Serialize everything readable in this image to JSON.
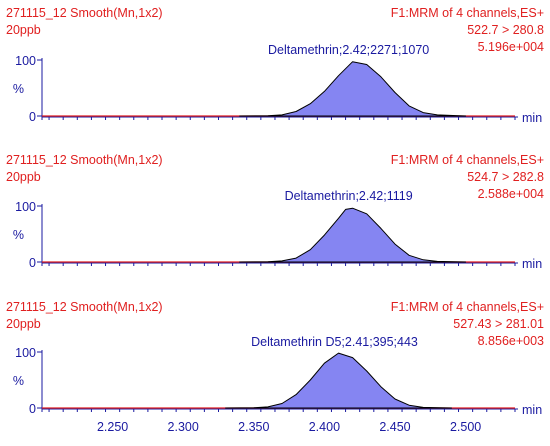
{
  "chart_data": [
    {
      "type": "area",
      "header_left": [
        "271115_12 Smooth(Mn,1x2)",
        "20ppb"
      ],
      "header_right": [
        "F1:MRM of 4 channels,ES+",
        "522.7 > 280.8",
        "5.196e+004"
      ],
      "peak_label": "Deltamethrin;2.42;2271;1070",
      "y_unit": "%",
      "x_unit": "min",
      "yticks": [
        "0",
        "100"
      ],
      "ylim": [
        0,
        100
      ],
      "xlim": [
        2.2,
        2.535
      ],
      "x": [
        2.34,
        2.36,
        2.37,
        2.38,
        2.39,
        2.4,
        2.41,
        2.42,
        2.43,
        2.44,
        2.45,
        2.46,
        2.47,
        2.48,
        2.5
      ],
      "values": [
        0,
        0.5,
        2,
        8,
        22,
        44,
        72,
        97,
        92,
        70,
        42,
        18,
        6,
        2,
        0
      ]
    },
    {
      "type": "area",
      "header_left": [
        "271115_12 Smooth(Mn,1x2)",
        "20ppb"
      ],
      "header_right": [
        "F1:MRM of 4 channels,ES+",
        "524.7 > 282.8",
        "2.588e+004"
      ],
      "peak_label": "Deltamethrin;2.42;1119",
      "y_unit": "%",
      "x_unit": "min",
      "yticks": [
        "0",
        "100"
      ],
      "ylim": [
        0,
        100
      ],
      "xlim": [
        2.2,
        2.535
      ],
      "x": [
        2.34,
        2.36,
        2.37,
        2.38,
        2.39,
        2.4,
        2.41,
        2.415,
        2.42,
        2.43,
        2.44,
        2.45,
        2.46,
        2.47,
        2.48,
        2.5
      ],
      "values": [
        0,
        0.5,
        2,
        7,
        22,
        48,
        78,
        94,
        96,
        86,
        60,
        32,
        12,
        4,
        1,
        0
      ]
    },
    {
      "type": "area",
      "header_left": [
        "271115_12 Smooth(Mn,1x2)",
        "20ppb"
      ],
      "header_right": [
        "F1:MRM of 4 channels,ES+",
        "527.43 > 281.01",
        "8.856e+003"
      ],
      "peak_label": "Deltamethrin D5;2.41;395;443",
      "y_unit": "%",
      "x_unit": "min",
      "yticks": [
        "0",
        "100"
      ],
      "ylim": [
        0,
        100
      ],
      "xlim": [
        2.2,
        2.535
      ],
      "x": [
        2.33,
        2.35,
        2.36,
        2.37,
        2.38,
        2.39,
        2.4,
        2.41,
        2.42,
        2.43,
        2.44,
        2.45,
        2.46,
        2.47,
        2.49
      ],
      "values": [
        0,
        0.5,
        2,
        8,
        24,
        50,
        80,
        98,
        90,
        66,
        38,
        16,
        5,
        1,
        0
      ],
      "xticks": [
        2.25,
        2.3,
        2.35,
        2.4,
        2.45,
        2.5
      ],
      "xtick_labels": [
        "2.250",
        "2.300",
        "2.350",
        "2.400",
        "2.450",
        "2.500"
      ]
    }
  ],
  "colors": {
    "header": "#e02020",
    "axis": "#1a1aa0",
    "peak_fill": "#8585f2",
    "peak_outline": "#000000",
    "baseline": "#e02020"
  }
}
